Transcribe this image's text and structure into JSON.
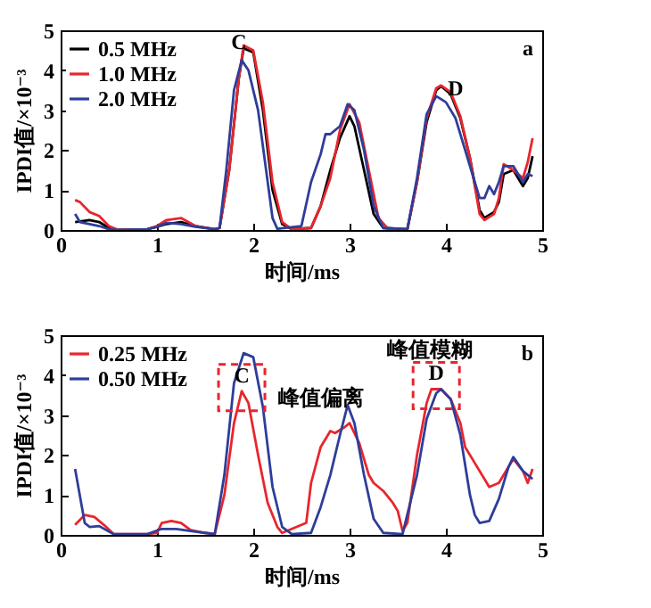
{
  "chart_data": [
    {
      "type": "line",
      "xlabel": "时间/ms",
      "ylabel": "IPDI值/×10⁻³",
      "xlim": [
        0,
        5
      ],
      "ylim": [
        0,
        5
      ],
      "xticks": [
        0,
        1,
        2,
        3,
        4,
        5
      ],
      "yticks": [
        0,
        1,
        2,
        3,
        4,
        5
      ],
      "legend": "top left",
      "annotations": [
        {
          "text": "C",
          "x": 1.85,
          "y": 4.7
        },
        {
          "text": "D",
          "x": 4.1,
          "y": 3.55
        },
        "a"
      ],
      "series": [
        {
          "name": "0.5 MHz",
          "color": "#000000",
          "x": [
            0.15,
            0.3,
            0.4,
            0.5,
            0.6,
            0.9,
            1.0,
            1.1,
            1.25,
            1.4,
            1.6,
            1.65,
            1.75,
            1.85,
            1.9,
            2.0,
            2.1,
            2.2,
            2.3,
            2.4,
            2.6,
            2.7,
            2.8,
            2.9,
            3.0,
            3.05,
            3.15,
            3.25,
            3.35,
            3.6,
            3.7,
            3.8,
            3.9,
            3.95,
            4.05,
            4.15,
            4.25,
            4.35,
            4.4,
            4.5,
            4.55,
            4.6,
            4.7,
            4.8,
            4.85,
            4.9
          ],
          "values": [
            0.2,
            0.25,
            0.2,
            0.05,
            0,
            0.02,
            0.08,
            0.15,
            0.2,
            0.1,
            0.02,
            0.05,
            1.5,
            3.8,
            4.55,
            4.45,
            3.0,
            1.0,
            0.15,
            0.02,
            0.05,
            0.6,
            1.5,
            2.3,
            2.85,
            2.6,
            1.5,
            0.4,
            0.05,
            0.02,
            1.2,
            2.7,
            3.5,
            3.6,
            3.4,
            2.8,
            1.8,
            0.5,
            0.3,
            0.45,
            0.7,
            1.4,
            1.5,
            1.1,
            1.3,
            1.85
          ]
        },
        {
          "name": "1.0 MHz",
          "color": "#e8262d",
          "x": [
            0.15,
            0.2,
            0.3,
            0.4,
            0.5,
            0.6,
            0.9,
            1.0,
            1.1,
            1.25,
            1.4,
            1.6,
            1.65,
            1.75,
            1.85,
            1.9,
            2.0,
            2.1,
            2.2,
            2.3,
            2.4,
            2.6,
            2.7,
            2.8,
            2.9,
            3.0,
            3.1,
            3.2,
            3.3,
            3.4,
            3.6,
            3.7,
            3.8,
            3.9,
            3.95,
            4.05,
            4.15,
            4.25,
            4.35,
            4.4,
            4.5,
            4.55,
            4.6,
            4.7,
            4.8,
            4.85,
            4.9
          ],
          "values": [
            0.75,
            0.7,
            0.45,
            0.35,
            0.1,
            0,
            0.02,
            0.1,
            0.25,
            0.3,
            0.1,
            0.02,
            0.05,
            1.5,
            3.8,
            4.62,
            4.5,
            3.2,
            1.2,
            0.2,
            0.02,
            0.05,
            0.6,
            1.3,
            2.5,
            3.15,
            2.7,
            1.5,
            0.3,
            0.03,
            0.02,
            1.2,
            2.8,
            3.55,
            3.62,
            3.45,
            2.85,
            1.8,
            0.4,
            0.25,
            0.4,
            0.8,
            1.65,
            1.5,
            1.3,
            1.7,
            2.3
          ]
        },
        {
          "name": "2.0 MHz",
          "color": "#2e3d9a",
          "x": [
            0.15,
            0.2,
            0.4,
            0.5,
            0.6,
            0.9,
            1.0,
            1.1,
            1.25,
            1.4,
            1.6,
            1.65,
            1.72,
            1.8,
            1.88,
            1.95,
            2.05,
            2.15,
            2.2,
            2.25,
            2.5,
            2.6,
            2.7,
            2.75,
            2.8,
            2.9,
            2.98,
            3.05,
            3.15,
            3.25,
            3.35,
            3.6,
            3.7,
            3.8,
            3.9,
            4.0,
            4.1,
            4.2,
            4.25,
            4.3,
            4.35,
            4.4,
            4.45,
            4.5,
            4.55,
            4.6,
            4.7,
            4.8,
            4.85,
            4.9
          ],
          "values": [
            0.4,
            0.2,
            0.1,
            0.02,
            0,
            0.02,
            0.08,
            0.18,
            0.15,
            0.08,
            0.02,
            0.05,
            1.5,
            3.5,
            4.25,
            4.0,
            3.0,
            1.2,
            0.3,
            0.03,
            0.1,
            1.2,
            1.9,
            2.4,
            2.4,
            2.6,
            3.15,
            3.0,
            2.0,
            0.6,
            0.05,
            0.02,
            1.3,
            2.9,
            3.35,
            3.2,
            2.8,
            2.0,
            1.6,
            1.2,
            0.8,
            0.8,
            1.1,
            0.9,
            1.2,
            1.6,
            1.6,
            1.2,
            1.4,
            1.35
          ]
        }
      ]
    },
    {
      "type": "line",
      "xlabel": "时间/ms",
      "ylabel": "IPDI值/×10⁻³",
      "xlim": [
        0,
        5
      ],
      "ylim": [
        0,
        5
      ],
      "xticks": [
        0,
        1,
        2,
        3,
        4,
        5
      ],
      "yticks": [
        0,
        1,
        2,
        3,
        4,
        5
      ],
      "legend": "top left",
      "annotations": [
        {
          "text": "C",
          "x": 1.88,
          "y": 3.6
        },
        {
          "text": "D",
          "x": 3.9,
          "y": 3.65
        },
        "峰值偏离",
        "峰值模糊",
        "b"
      ],
      "series": [
        {
          "name": "0.25 MHz",
          "color": "#e8262d",
          "x": [
            0.15,
            0.25,
            0.35,
            0.45,
            0.55,
            0.9,
            1.0,
            1.05,
            1.15,
            1.25,
            1.35,
            1.5,
            1.6,
            1.7,
            1.8,
            1.88,
            1.95,
            2.05,
            2.15,
            2.25,
            2.3,
            2.45,
            2.55,
            2.6,
            2.7,
            2.8,
            2.85,
            2.95,
            3.0,
            3.1,
            3.2,
            3.25,
            3.35,
            3.45,
            3.5,
            3.55,
            3.6,
            3.7,
            3.8,
            3.85,
            3.95,
            4.05,
            4.15,
            4.2,
            4.3,
            4.4,
            4.45,
            4.55,
            4.65,
            4.7,
            4.8,
            4.85,
            4.9
          ],
          "values": [
            0.25,
            0.5,
            0.45,
            0.25,
            0.02,
            0.02,
            0.05,
            0.3,
            0.35,
            0.3,
            0.12,
            0.05,
            0.02,
            1.0,
            2.8,
            3.6,
            3.3,
            2.0,
            0.8,
            0.2,
            0.05,
            0.2,
            0.3,
            1.3,
            2.2,
            2.6,
            2.55,
            2.7,
            2.8,
            2.3,
            1.5,
            1.3,
            1.1,
            0.8,
            0.6,
            0.1,
            0.3,
            2.0,
            3.3,
            3.65,
            3.65,
            3.4,
            2.8,
            2.2,
            1.8,
            1.4,
            1.2,
            1.3,
            1.7,
            1.9,
            1.6,
            1.3,
            1.65
          ]
        },
        {
          "name": "0.50 MHz",
          "color": "#2e3d9a",
          "x": [
            0.15,
            0.25,
            0.3,
            0.4,
            0.55,
            0.9,
            1.05,
            1.2,
            1.35,
            1.5,
            1.6,
            1.7,
            1.8,
            1.9,
            2.0,
            2.1,
            2.2,
            2.3,
            2.4,
            2.6,
            2.7,
            2.8,
            2.9,
            2.98,
            3.05,
            3.15,
            3.25,
            3.35,
            3.55,
            3.7,
            3.8,
            3.9,
            3.95,
            4.05,
            4.15,
            4.25,
            4.3,
            4.35,
            4.45,
            4.55,
            4.65,
            4.7,
            4.8,
            4.85,
            4.9
          ],
          "values": [
            1.65,
            0.3,
            0.2,
            0.22,
            0.02,
            0.02,
            0.15,
            0.15,
            0.1,
            0.05,
            0.02,
            1.5,
            3.8,
            4.55,
            4.45,
            3.2,
            1.2,
            0.2,
            0.02,
            0.05,
            0.7,
            1.5,
            2.5,
            3.25,
            2.8,
            1.5,
            0.4,
            0.05,
            0.02,
            1.5,
            2.9,
            3.55,
            3.65,
            3.4,
            2.5,
            1.0,
            0.5,
            0.3,
            0.35,
            0.9,
            1.7,
            1.95,
            1.6,
            1.5,
            1.4
          ]
        }
      ]
    }
  ]
}
